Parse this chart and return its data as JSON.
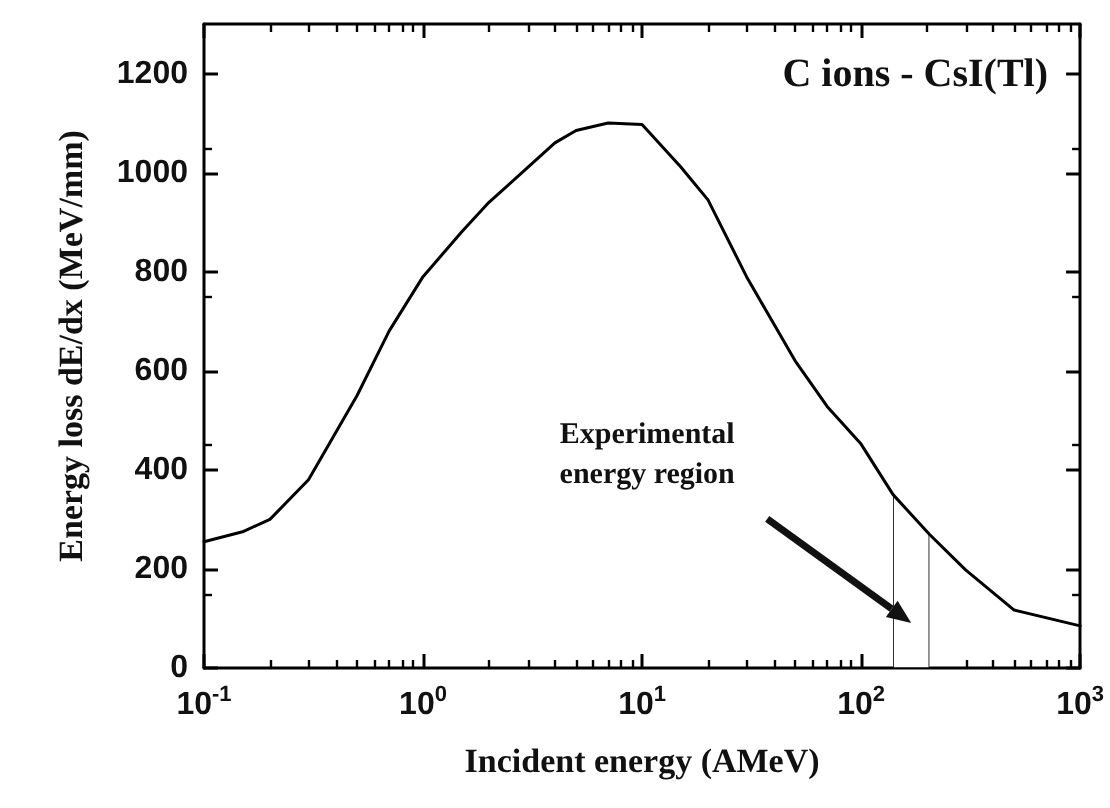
{
  "chart_data": {
    "type": "line",
    "title": "C ions - CsI(Tl)",
    "xlabel": "Incident energy (AMeV)",
    "ylabel": "Energy loss dE/dx (MeV/mm)",
    "x": [
      0.1,
      0.15,
      0.2,
      0.3,
      0.5,
      0.7,
      1,
      1.5,
      2,
      3,
      4,
      5,
      7,
      10,
      15,
      20,
      30,
      50,
      70,
      100,
      140,
      205,
      300,
      500,
      1000
    ],
    "series": [
      {
        "color": "#000000",
        "values": [
          255,
          275,
          300,
          380,
          550,
          680,
          790,
          880,
          940,
          1010,
          1060,
          1085,
          1100,
          1097,
          1012,
          945,
          790,
          620,
          528,
          452,
          350,
          270,
          198,
          117,
          85
        ]
      }
    ],
    "log": "x",
    "xlim": [
      0.1,
      1000
    ],
    "xticks": [
      {
        "value": 0.1,
        "label": "10$^{-1}$"
      },
      {
        "value": 1,
        "label": "10$^{0}$"
      },
      {
        "value": 10,
        "label": "10$^{1}$"
      },
      {
        "value": 100,
        "label": "10$^{2}$"
      },
      {
        "value": 1000,
        "label": "10$^{3}$"
      }
    ],
    "ylim": [
      0,
      1300
    ],
    "yticks": [
      0,
      200,
      400,
      600,
      800,
      1000,
      1200
    ],
    "bands": [
      {
        "axis": "x",
        "from": 140,
        "to": 205,
        "label": "Experimental\nenergy region"
      }
    ],
    "grid": false,
    "marker": "none",
    "line_style": "solid"
  }
}
